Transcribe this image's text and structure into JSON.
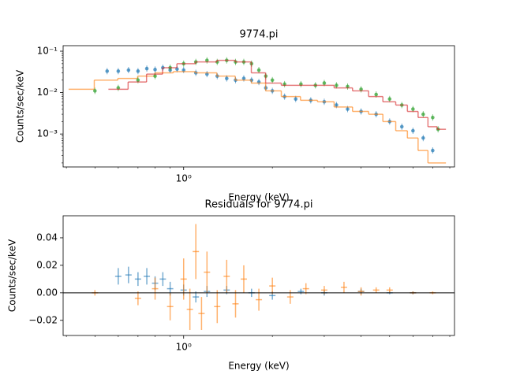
{
  "chart_data": [
    {
      "type": "scatter",
      "title": "9774.pi",
      "x_label": "Energy (keV)",
      "y_label": "Counts/sec/keV",
      "xscale": "log",
      "yscale": "log",
      "xlim": [
        0.39,
        8.3
      ],
      "ylim": [
        0.00016,
        0.136
      ],
      "xticks": [
        {
          "value": 1,
          "label": "10⁰"
        }
      ],
      "yticks": [
        {
          "value": 0.001,
          "label": "10⁻³"
        },
        {
          "value": 0.01,
          "label": "10⁻²"
        },
        {
          "value": 0.1,
          "label": "10⁻¹"
        }
      ],
      "series": [
        {
          "mode": "markers",
          "color": "#1f77b4",
          "x": [
            0.55,
            0.6,
            0.65,
            0.7,
            0.75,
            0.8,
            0.85,
            0.9,
            0.95,
            1.0,
            1.1,
            1.2,
            1.3,
            1.4,
            1.5,
            1.6,
            1.7,
            1.8,
            1.9,
            2.0,
            2.2,
            2.4,
            2.7,
            3.0,
            3.3,
            3.6,
            4.0,
            4.5,
            5.0,
            5.5,
            6.0,
            6.5,
            7.0
          ],
          "values": [
            0.033,
            0.033,
            0.035,
            0.033,
            0.038,
            0.036,
            0.04,
            0.035,
            0.037,
            0.035,
            0.03,
            0.028,
            0.025,
            0.022,
            0.02,
            0.022,
            0.02,
            0.018,
            0.013,
            0.011,
            0.008,
            0.007,
            0.0065,
            0.006,
            0.005,
            0.004,
            0.0035,
            0.003,
            0.002,
            0.0015,
            0.0012,
            0.0008,
            0.0004
          ]
        },
        {
          "mode": "steps",
          "color": "#ff7f0e",
          "x": [
            0.45,
            0.55,
            0.65,
            0.75,
            0.85,
            1.0,
            1.2,
            1.4,
            1.6,
            1.8,
            2.0,
            2.3,
            2.7,
            3.0,
            3.5,
            4.0,
            4.5,
            5.0,
            5.5,
            6.0,
            6.5,
            7.0,
            7.5
          ],
          "values": [
            0.012,
            0.02,
            0.022,
            0.025,
            0.03,
            0.032,
            0.03,
            0.025,
            0.02,
            0.017,
            0.011,
            0.008,
            0.0065,
            0.006,
            0.0045,
            0.0035,
            0.003,
            0.002,
            0.0012,
            0.0008,
            0.0004,
            0.0002,
            0.0002
          ]
        },
        {
          "mode": "markers",
          "color": "#2ca02c",
          "x": [
            0.5,
            0.6,
            0.7,
            0.8,
            0.9,
            1.0,
            1.1,
            1.2,
            1.3,
            1.4,
            1.5,
            1.6,
            1.7,
            1.8,
            1.9,
            2.0,
            2.2,
            2.5,
            2.8,
            3.0,
            3.3,
            3.6,
            4.0,
            4.5,
            5.0,
            5.5,
            6.0,
            6.5,
            7.0,
            7.3
          ],
          "values": [
            0.011,
            0.013,
            0.02,
            0.025,
            0.04,
            0.05,
            0.055,
            0.06,
            0.055,
            0.06,
            0.055,
            0.055,
            0.05,
            0.035,
            0.025,
            0.02,
            0.016,
            0.016,
            0.015,
            0.017,
            0.015,
            0.014,
            0.012,
            0.009,
            0.007,
            0.005,
            0.004,
            0.003,
            0.0025,
            0.0013
          ]
        },
        {
          "mode": "steps",
          "color": "#d62728",
          "x": [
            0.6,
            0.7,
            0.8,
            0.9,
            1.0,
            1.2,
            1.4,
            1.6,
            1.8,
            2.0,
            2.3,
            2.7,
            3.0,
            3.5,
            4.0,
            4.5,
            5.0,
            5.5,
            6.0,
            6.5,
            7.0,
            7.5
          ],
          "values": [
            0.012,
            0.018,
            0.028,
            0.04,
            0.05,
            0.055,
            0.06,
            0.055,
            0.03,
            0.017,
            0.015,
            0.015,
            0.015,
            0.013,
            0.011,
            0.008,
            0.006,
            0.005,
            0.0035,
            0.0025,
            0.0015,
            0.0013
          ]
        }
      ]
    },
    {
      "type": "errorbar",
      "title": "Residuals for 9774.pi",
      "x_label": "Energy (keV)",
      "y_label": "Counts/sec/keV",
      "xscale": "log",
      "yscale": "linear",
      "hline": 0,
      "xlim": [
        0.39,
        8.3
      ],
      "ylim": [
        -0.031,
        0.056
      ],
      "xticks": [
        {
          "value": 1,
          "label": "10⁰"
        }
      ],
      "yticks": [
        {
          "value": -0.02,
          "label": "−0.02"
        },
        {
          "value": 0,
          "label": "0.00"
        },
        {
          "value": 0.02,
          "label": "0.02"
        },
        {
          "value": 0.04,
          "label": "0.04"
        }
      ],
      "series": [
        {
          "color": "#1f77b4",
          "x": [
            0.6,
            0.65,
            0.7,
            0.75,
            0.8,
            0.85,
            0.9,
            1.0,
            1.1,
            1.2,
            1.4,
            1.7,
            2.0,
            2.5,
            3.0,
            4.0,
            5.0,
            6.0
          ],
          "values": [
            0.012,
            0.013,
            0.01,
            0.012,
            0.007,
            0.01,
            0.003,
            0.002,
            -0.003,
            0.001,
            0.002,
            0.0,
            -0.002,
            0.001,
            0.0,
            0.001,
            0.0,
            0.0
          ],
          "errors": [
            0.006,
            0.006,
            0.005,
            0.006,
            0.005,
            0.005,
            0.005,
            0.004,
            0.004,
            0.004,
            0.003,
            0.003,
            0.003,
            0.002,
            0.002,
            0.002,
            0.001,
            0.001
          ]
        },
        {
          "color": "#ff7f0e",
          "x": [
            0.5,
            0.7,
            0.8,
            0.9,
            1.0,
            1.05,
            1.1,
            1.15,
            1.2,
            1.3,
            1.4,
            1.5,
            1.6,
            1.8,
            2.0,
            2.3,
            2.6,
            3.0,
            3.5,
            4.0,
            4.5,
            5.0,
            6.0,
            7.0
          ],
          "values": [
            0.0,
            -0.004,
            0.003,
            -0.01,
            0.01,
            -0.012,
            0.03,
            -0.015,
            0.015,
            -0.01,
            0.012,
            -0.008,
            0.01,
            -0.005,
            0.005,
            -0.003,
            0.003,
            0.002,
            0.004,
            0.001,
            0.002,
            0.002,
            0.0,
            0.0
          ],
          "errors": [
            0.002,
            0.005,
            0.008,
            0.01,
            0.015,
            0.015,
            0.02,
            0.012,
            0.015,
            0.012,
            0.012,
            0.01,
            0.01,
            0.008,
            0.006,
            0.005,
            0.004,
            0.003,
            0.004,
            0.003,
            0.002,
            0.002,
            0.001,
            0.001
          ]
        }
      ]
    }
  ]
}
